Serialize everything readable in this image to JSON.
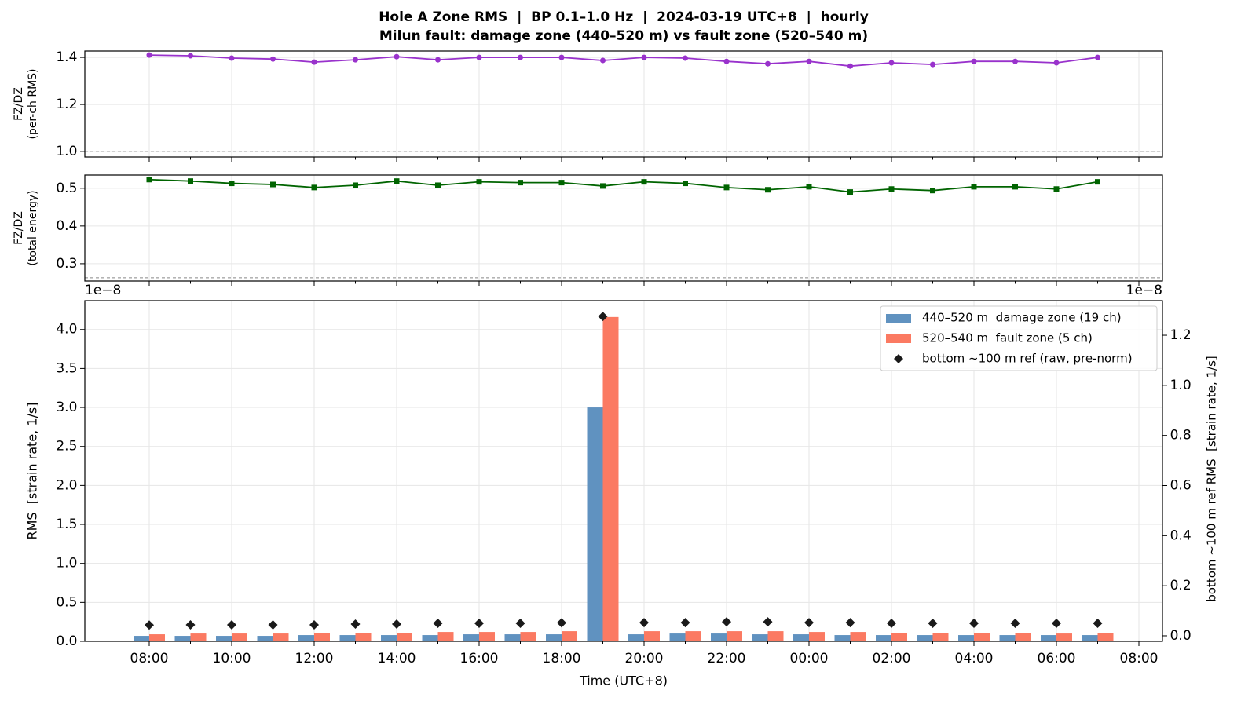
{
  "chart_data": [
    {
      "type": "line",
      "title": "Hole A Zone RMS  |  BP 0.1–1.0 Hz  |  2024-03-19 UTC+8  |  hourly",
      "subtitle": "Milun fault: damage zone (440–520 m) vs fault zone (520–540 m)",
      "ylabel": [
        "FZ/DZ",
        "(per-ch RMS)"
      ],
      "ylim": [
        0.977,
        1.427
      ],
      "yticks": [
        {
          "value": 1,
          "label": "1.0"
        },
        1.2,
        1.4
      ],
      "grid": true,
      "hline": 1,
      "series": [
        {
          "color": "#9932cc",
          "marker": "circle",
          "values": [
            1.41,
            1.407,
            1.397,
            1.393,
            1.38,
            1.39,
            1.403,
            1.39,
            1.4,
            1.4,
            1.4,
            1.387,
            1.4,
            1.397,
            1.383,
            1.373,
            1.383,
            1.363,
            1.377,
            1.37,
            1.383,
            1.383,
            1.377,
            1.4,
            null
          ]
        }
      ]
    },
    {
      "type": "line",
      "ylabel": [
        "FZ/DZ",
        "(total energy)"
      ],
      "ylim": [
        0.254,
        0.535
      ],
      "yticks": [
        0.3,
        0.4,
        0.5
      ],
      "grid": true,
      "hline": 0.2625,
      "series": [
        {
          "color": "#006400",
          "marker": "square",
          "values": [
            0.523,
            0.519,
            0.513,
            0.51,
            0.502,
            0.508,
            0.519,
            0.508,
            0.517,
            0.515,
            0.515,
            0.506,
            0.517,
            0.513,
            0.502,
            0.496,
            0.504,
            0.49,
            0.498,
            0.494,
            0.504,
            0.504,
            0.498,
            0.517,
            null
          ]
        }
      ]
    },
    {
      "type": "bar",
      "xlabel": "Time (UTC+8)",
      "ylabel": "RMS  [strain rate, 1/s]",
      "y2label": "bottom ~100 m ref RMS  [strain rate, 1/s]",
      "y_offset_label": "1e−8",
      "y2_offset_label": "1e−8",
      "categories": [
        "08:00",
        null,
        "10:00",
        null,
        "12:00",
        null,
        "14:00",
        null,
        "16:00",
        null,
        "18:00",
        null,
        "20:00",
        null,
        "22:00",
        null,
        "00:00",
        null,
        "02:00",
        null,
        "04:00",
        null,
        "06:00",
        null,
        "08:00"
      ],
      "ylim": [
        0,
        4.37
      ],
      "yticks": [
        {
          "value": 0,
          "label": "0.0"
        },
        0.5,
        {
          "value": 1,
          "label": "1.0"
        },
        1.5,
        {
          "value": 2,
          "label": "2.0"
        },
        2.5,
        {
          "value": 3,
          "label": "3.0"
        },
        3.5,
        {
          "value": 4,
          "label": "4.0"
        }
      ],
      "y2lim": [
        -0.022,
        1.338
      ],
      "y2ticks": [
        {
          "value": 0,
          "label": "0.0"
        },
        0.2,
        0.4,
        0.6,
        0.8,
        {
          "value": 1,
          "label": "1.0"
        },
        1.2
      ],
      "grid": true,
      "legend": "upper right",
      "series": [
        {
          "name": "440–520 m  damage zone (19 ch)",
          "color": "#6092c0",
          "values": [
            0.07,
            0.07,
            0.07,
            0.07,
            0.08,
            0.08,
            0.08,
            0.08,
            0.09,
            0.09,
            0.09,
            3.0,
            0.09,
            0.1,
            0.1,
            0.09,
            0.09,
            0.08,
            0.08,
            0.08,
            0.08,
            0.08,
            0.08,
            0.08,
            null
          ]
        },
        {
          "name": "520–540 m  fault zone (5 ch)",
          "color": "#fb7a62",
          "values": [
            0.09,
            0.1,
            0.1,
            0.1,
            0.11,
            0.11,
            0.11,
            0.12,
            0.12,
            0.12,
            0.13,
            4.16,
            0.13,
            0.13,
            0.13,
            0.13,
            0.12,
            0.12,
            0.11,
            0.11,
            0.11,
            0.11,
            0.1,
            0.11,
            null
          ]
        },
        {
          "name": "bottom ~100 m ref (raw, pre-norm)",
          "color": "#1a1a1a",
          "axis": "y2",
          "marker": "diamond",
          "values": [
            0.043,
            0.044,
            0.044,
            0.044,
            0.044,
            0.047,
            0.047,
            0.05,
            0.05,
            0.05,
            0.052,
            1.275,
            0.053,
            0.053,
            0.056,
            0.056,
            0.053,
            0.053,
            0.05,
            0.05,
            0.05,
            0.05,
            0.05,
            0.05,
            null
          ]
        }
      ]
    }
  ]
}
